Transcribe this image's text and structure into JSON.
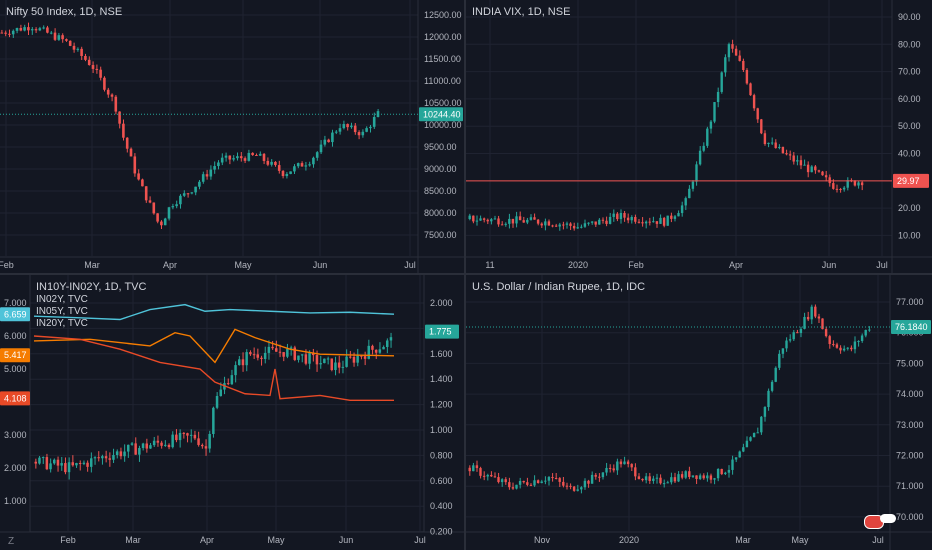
{
  "colors": {
    "up": "#26a69a",
    "down": "#ef5350",
    "grid": "#1f2331",
    "axis": "#2a2e39",
    "bg": "#131722"
  },
  "panes": [
    {
      "id": "nifty",
      "title": "Nifty 50 Index, 1D, NSE",
      "y_ticks": [
        "12500.00",
        "12000.00",
        "11500.00",
        "11000.00",
        "10500.00",
        "10000.00",
        "9500.00",
        "9000.00",
        "8500.00",
        "8000.00",
        "7500.00"
      ],
      "x_ticks": [
        "Feb",
        "Mar",
        "Apr",
        "May",
        "Jun",
        "Jul"
      ],
      "price_tag": "10244.40",
      "price_tag_color": "#26a69a"
    },
    {
      "id": "vix",
      "title": "INDIA VIX, 1D, NSE",
      "y_ticks": [
        "90.00",
        "80.00",
        "70.00",
        "60.00",
        "50.00",
        "40.00",
        "30.00",
        "20.00",
        "10.00"
      ],
      "x_ticks": [
        "11",
        "2020",
        "Feb",
        "Apr",
        "Jun",
        "Jul"
      ],
      "price_tag": "29.97",
      "price_tag_color": "#ef5350"
    },
    {
      "id": "yield",
      "title": "IN10Y-IN02Y, 1D, TVC",
      "legend": [
        "IN02Y, TVC",
        "IN05Y, TVC",
        "IN20Y, TVC"
      ],
      "left_ticks": [
        "7.000",
        "6.000",
        "5.000",
        "4.000",
        "3.000",
        "2.000",
        "1.000"
      ],
      "right_ticks": [
        "2.000",
        "1.800",
        "1.600",
        "1.400",
        "1.200",
        "1.000",
        "0.800",
        "0.600",
        "0.400",
        "0.200"
      ],
      "x_ticks": [
        "Feb",
        "Mar",
        "Apr",
        "May",
        "Jun",
        "Jul"
      ],
      "left_tags": [
        {
          "text": "6.659",
          "color": "#4fc3d9"
        },
        {
          "text": "5.417",
          "color": "#f57c00"
        },
        {
          "text": "4.108",
          "color": "#e84a27"
        }
      ],
      "price_tag": "1.775",
      "price_tag_color": "#26a69a",
      "bottom_left": "Z"
    },
    {
      "id": "usdinr",
      "title": "U.S. Dollar / Indian Rupee, 1D, IDC",
      "y_ticks": [
        "77.000",
        "76.000",
        "75.000",
        "74.000",
        "73.000",
        "72.000",
        "71.000",
        "70.000"
      ],
      "x_ticks": [
        "Nov",
        "2020",
        "Mar",
        "May",
        "Jul"
      ],
      "price_tag": "76.1840",
      "price_tag_color": "#26a69a"
    }
  ]
}
